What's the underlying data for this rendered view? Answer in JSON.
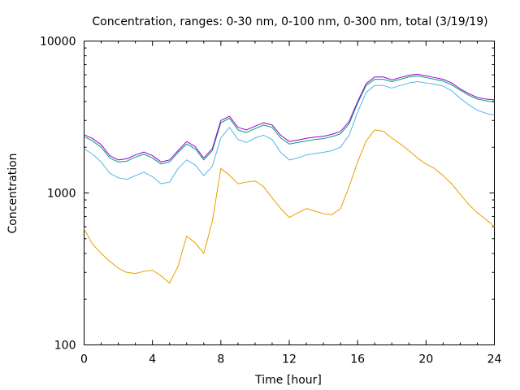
{
  "chart_data": {
    "type": "line",
    "title": "Concentration, ranges: 0-30 nm, 0-100 nm, 0-300 nm, total (3/19/19)",
    "xlabel": "Time [hour]",
    "ylabel": "Concentration",
    "xlim": [
      0,
      24
    ],
    "ylim": [
      100,
      10000
    ],
    "yscale": "log",
    "grid": false,
    "legend": "none",
    "x_ticks": [
      0,
      4,
      8,
      12,
      16,
      20,
      24
    ],
    "x_tick_labels": [
      "0",
      "4",
      "8",
      "12",
      "16",
      "20",
      "24"
    ],
    "y_ticks": [
      100,
      1000,
      10000
    ],
    "y_tick_labels": [
      "100",
      "1000",
      "10000"
    ],
    "x": [
      0,
      0.5,
      1,
      1.5,
      2,
      2.5,
      3,
      3.5,
      4,
      4.5,
      5,
      5.5,
      6,
      6.5,
      7,
      7.5,
      8,
      8.5,
      9,
      9.5,
      10,
      10.5,
      11,
      11.5,
      12,
      12.5,
      13,
      13.5,
      14,
      14.5,
      15,
      15.5,
      16,
      16.5,
      17,
      17.5,
      18,
      18.5,
      19,
      19.5,
      20,
      20.5,
      21,
      21.5,
      22,
      22.5,
      23,
      23.5,
      24
    ],
    "series": [
      {
        "color": "#e69f00",
        "values": [
          580,
          460,
          400,
          355,
          320,
          300,
          295,
          305,
          310,
          285,
          255,
          330,
          520,
          470,
          400,
          650,
          1450,
          1310,
          1150,
          1180,
          1200,
          1100,
          930,
          790,
          690,
          740,
          790,
          760,
          730,
          720,
          790,
          1100,
          1600,
          2200,
          2600,
          2550,
          2300,
          2100,
          1900,
          1700,
          1550,
          1450,
          1300,
          1150,
          980,
          840,
          740,
          670,
          600
        ]
      },
      {
        "color": "#56b4e9",
        "values": [
          1950,
          1800,
          1600,
          1350,
          1260,
          1230,
          1300,
          1370,
          1280,
          1150,
          1180,
          1450,
          1650,
          1530,
          1300,
          1500,
          2300,
          2700,
          2250,
          2150,
          2300,
          2400,
          2250,
          1850,
          1650,
          1700,
          1780,
          1820,
          1850,
          1900,
          2000,
          2400,
          3400,
          4600,
          5100,
          5100,
          4900,
          5100,
          5300,
          5400,
          5300,
          5200,
          5050,
          4700,
          4200,
          3800,
          3500,
          3350,
          3250
        ]
      },
      {
        "color": "#009e73",
        "values": [
          2350,
          2200,
          2000,
          1700,
          1600,
          1620,
          1720,
          1800,
          1700,
          1550,
          1600,
          1850,
          2100,
          1950,
          1650,
          1900,
          2900,
          3100,
          2600,
          2500,
          2650,
          2800,
          2700,
          2300,
          2100,
          2150,
          2200,
          2250,
          2280,
          2350,
          2450,
          2850,
          3900,
          5100,
          5600,
          5600,
          5400,
          5600,
          5800,
          5900,
          5750,
          5600,
          5450,
          5150,
          4750,
          4400,
          4150,
          4050,
          3950
        ]
      },
      {
        "color": "#9400d3",
        "values": [
          2420,
          2280,
          2080,
          1760,
          1650,
          1680,
          1780,
          1860,
          1760,
          1600,
          1650,
          1900,
          2180,
          2020,
          1700,
          1960,
          3000,
          3200,
          2700,
          2600,
          2750,
          2900,
          2800,
          2400,
          2180,
          2230,
          2290,
          2330,
          2360,
          2430,
          2540,
          2950,
          4000,
          5250,
          5800,
          5800,
          5550,
          5750,
          5950,
          6050,
          5900,
          5750,
          5600,
          5300,
          4850,
          4500,
          4250,
          4150,
          4100
        ]
      }
    ]
  }
}
